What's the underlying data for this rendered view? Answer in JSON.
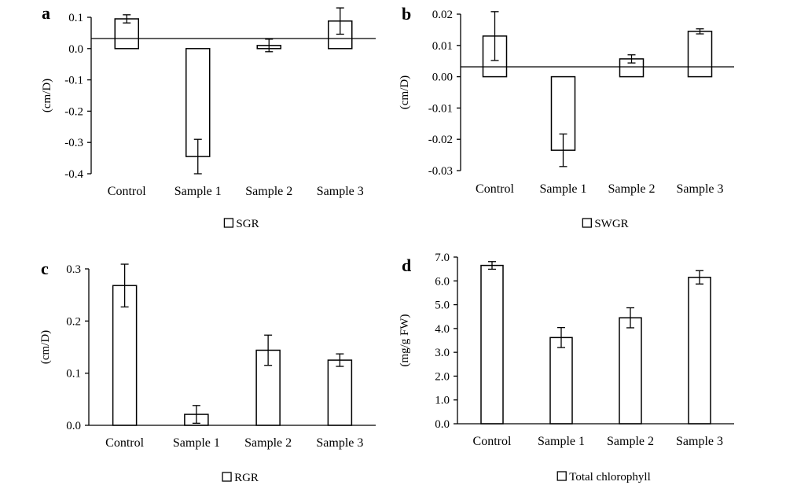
{
  "chart_data": [
    {
      "panel_label": "a",
      "type": "bar",
      "categories": [
        "Control",
        "Sample 1",
        "Sample 2",
        "Sample 3"
      ],
      "series": [
        {
          "name": "SGR",
          "values": [
            0.095,
            -0.345,
            0.01,
            0.088
          ],
          "errors": [
            0.013,
            0.055,
            0.02,
            0.042
          ]
        }
      ],
      "ylabel": "(cm/D)",
      "ylim": [
        -0.4,
        0.1
      ],
      "yticks": [
        0.1,
        0.0,
        -0.1,
        -0.2,
        -0.3,
        -0.4
      ],
      "ytick_labels": [
        "0.1",
        "0.0",
        "-0.1",
        "-0.2",
        "-0.3",
        "-0.4"
      ],
      "legend": "bottom-center",
      "grid": false
    },
    {
      "panel_label": "b",
      "type": "bar",
      "categories": [
        "Control",
        "Sample 1",
        "Sample 2",
        "Sample 3"
      ],
      "series": [
        {
          "name": "SWGR",
          "values": [
            0.013,
            -0.0235,
            0.0057,
            0.0145
          ],
          "errors": [
            0.0078,
            0.0052,
            0.0013,
            0.0008
          ]
        }
      ],
      "ylabel": "(cm/D)",
      "ylim": [
        -0.03,
        0.02
      ],
      "yticks": [
        0.02,
        0.01,
        0.0,
        -0.01,
        -0.02,
        -0.03
      ],
      "ytick_labels": [
        "0.02",
        "0.01",
        "0.00",
        "-0.01",
        "-0.02",
        "-0.03"
      ],
      "legend": "bottom-center",
      "grid": false
    },
    {
      "panel_label": "c",
      "type": "bar",
      "categories": [
        "Control",
        "Sample 1",
        "Sample 2",
        "Sample 3"
      ],
      "series": [
        {
          "name": "RGR",
          "values": [
            0.268,
            0.021,
            0.144,
            0.125
          ],
          "errors": [
            0.041,
            0.017,
            0.029,
            0.012
          ]
        }
      ],
      "ylabel": "(cm/D)",
      "ylim": [
        0.0,
        0.3
      ],
      "yticks": [
        0.3,
        0.2,
        0.1,
        0.0
      ],
      "ytick_labels": [
        "0.3",
        "0.2",
        "0.1",
        "0.0"
      ],
      "legend": "bottom-center",
      "grid": false
    },
    {
      "panel_label": "d",
      "type": "bar",
      "categories": [
        "Control",
        "Sample 1",
        "Sample 2",
        "Sample 3"
      ],
      "series": [
        {
          "name": "Total chlorophyll",
          "values": [
            6.65,
            3.62,
            4.45,
            6.15
          ],
          "errors": [
            0.16,
            0.42,
            0.42,
            0.28
          ]
        }
      ],
      "ylabel": "(mg/g FW)",
      "ylim": [
        0.0,
        7.0
      ],
      "yticks": [
        7.0,
        6.0,
        5.0,
        4.0,
        3.0,
        2.0,
        1.0,
        0.0
      ],
      "ytick_labels": [
        "7.0",
        "6.0",
        "5.0",
        "4.0",
        "3.0",
        "2.0",
        "1.0",
        "0.0"
      ],
      "legend": "bottom-center",
      "grid": false
    }
  ]
}
